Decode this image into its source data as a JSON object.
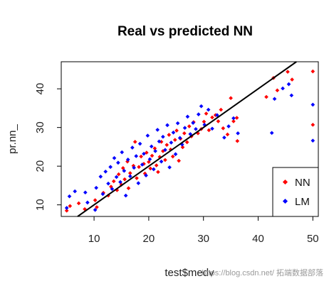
{
  "chart_data": {
    "type": "scatter",
    "title": "Real vs predicted NN",
    "xlabel": "test$medv",
    "ylabel": "pr.nn_",
    "xlim": [
      4,
      51
    ],
    "ylim": [
      7,
      47
    ],
    "x_ticks": [
      10,
      20,
      30,
      40,
      50
    ],
    "y_ticks": [
      10,
      20,
      30,
      40
    ],
    "grid": false,
    "legend": {
      "position": "bottom-right",
      "entries": [
        "NN",
        "LM"
      ]
    },
    "reference_line": {
      "slope": 1,
      "intercept": 0,
      "color": "#000000"
    },
    "colors": {
      "NN": "#ff0000",
      "LM": "#0000ff"
    },
    "series": [
      {
        "name": "NN",
        "marker": "diamond",
        "color": "#ff0000",
        "points": [
          [
            5,
            8.5
          ],
          [
            5.6,
            9.7
          ],
          [
            7.2,
            10.4
          ],
          [
            8.3,
            8.9
          ],
          [
            10.2,
            11.2
          ],
          [
            10.5,
            9.4
          ],
          [
            11.7,
            13.1
          ],
          [
            12.6,
            12.4
          ],
          [
            13.1,
            14.7
          ],
          [
            13.6,
            16.1
          ],
          [
            14.2,
            13.8
          ],
          [
            14.5,
            17.9
          ],
          [
            15,
            15.2
          ],
          [
            15.3,
            19.5
          ],
          [
            15.6,
            16.6
          ],
          [
            16.1,
            21.2
          ],
          [
            16.3,
            14.3
          ],
          [
            16.6,
            18.2
          ],
          [
            17.2,
            20.1
          ],
          [
            17.5,
            26.3
          ],
          [
            17.8,
            16.9
          ],
          [
            18.2,
            19.8
          ],
          [
            18.6,
            22.5
          ],
          [
            19.1,
            20.6
          ],
          [
            19.3,
            18.1
          ],
          [
            19.6,
            23.5
          ],
          [
            20,
            21.1
          ],
          [
            20.3,
            19.4
          ],
          [
            20.6,
            22.7
          ],
          [
            21.1,
            24.6
          ],
          [
            21.4,
            20.2
          ],
          [
            21.7,
            18.5
          ],
          [
            22,
            22.4
          ],
          [
            22.3,
            26.3
          ],
          [
            22.6,
            23.9
          ],
          [
            23,
            21.6
          ],
          [
            23.3,
            25.5
          ],
          [
            23.7,
            28.1
          ],
          [
            24,
            24.3
          ],
          [
            24.4,
            22.5
          ],
          [
            24.8,
            26.8
          ],
          [
            25.1,
            29.2
          ],
          [
            25.5,
            21.4
          ],
          [
            25.8,
            27.1
          ],
          [
            26.2,
            24.9
          ],
          [
            26.5,
            28.5
          ],
          [
            27,
            26.2
          ],
          [
            27.4,
            30.3
          ],
          [
            27.8,
            27.7
          ],
          [
            28.2,
            31.4
          ],
          [
            29,
            28.5
          ],
          [
            29.6,
            29.6
          ],
          [
            30.1,
            31.5
          ],
          [
            30.5,
            33.6
          ],
          [
            31,
            29.3
          ],
          [
            31.6,
            32.6
          ],
          [
            32.2,
            33.2
          ],
          [
            32.7,
            31.6
          ],
          [
            33.2,
            34.6
          ],
          [
            33.6,
            29.8
          ],
          [
            34.4,
            28.2
          ],
          [
            35,
            37.6
          ],
          [
            35.5,
            31.6
          ],
          [
            36.1,
            32.5
          ],
          [
            36.2,
            26.5
          ],
          [
            41.5,
            37.9
          ],
          [
            42.8,
            42.8
          ],
          [
            43.5,
            39.6
          ],
          [
            45.4,
            44.4
          ],
          [
            46.2,
            42.4
          ],
          [
            50,
            44.5
          ],
          [
            50,
            30.7
          ]
        ]
      },
      {
        "name": "LM",
        "marker": "diamond",
        "color": "#0000ff",
        "points": [
          [
            5,
            9.2
          ],
          [
            5.5,
            12.2
          ],
          [
            6.5,
            13.5
          ],
          [
            8.4,
            13.2
          ],
          [
            8.8,
            10.6
          ],
          [
            10.2,
            8.7
          ],
          [
            10.4,
            14.4
          ],
          [
            11.2,
            17.3
          ],
          [
            11.6,
            12.8
          ],
          [
            12.1,
            18.6
          ],
          [
            12.6,
            15.5
          ],
          [
            13,
            19.8
          ],
          [
            13.3,
            14.1
          ],
          [
            13.7,
            22.1
          ],
          [
            14.1,
            17.2
          ],
          [
            14.4,
            20.9
          ],
          [
            14.8,
            15.9
          ],
          [
            15.1,
            23.6
          ],
          [
            15.5,
            18.8
          ],
          [
            15.8,
            12.4
          ],
          [
            16.2,
            21.7
          ],
          [
            16.6,
            17.4
          ],
          [
            17,
            24.8
          ],
          [
            17.3,
            19.6
          ],
          [
            17.7,
            22.6
          ],
          [
            18.1,
            15.6
          ],
          [
            18.4,
            25.8
          ],
          [
            18.8,
            20.4
          ],
          [
            19.1,
            23.2
          ],
          [
            19.5,
            17.6
          ],
          [
            19.8,
            27.9
          ],
          [
            20.2,
            21.8
          ],
          [
            20.5,
            25.1
          ],
          [
            20.9,
            19.2
          ],
          [
            21.2,
            23.9
          ],
          [
            21.6,
            29.4
          ],
          [
            21.9,
            26.4
          ],
          [
            22.3,
            21.2
          ],
          [
            22.6,
            27.6
          ],
          [
            23,
            24.2
          ],
          [
            23.4,
            30.6
          ],
          [
            23.8,
            19.7
          ],
          [
            24.1,
            26.1
          ],
          [
            24.5,
            28.7
          ],
          [
            24.9,
            23.1
          ],
          [
            25.3,
            31.1
          ],
          [
            25.7,
            27.3
          ],
          [
            26.1,
            25.6
          ],
          [
            26.6,
            29.9
          ],
          [
            27.1,
            32.8
          ],
          [
            27.6,
            28.3
          ],
          [
            28.1,
            31.2
          ],
          [
            28.6,
            29.6
          ],
          [
            29.1,
            33.4
          ],
          [
            29.6,
            35.5
          ],
          [
            30.2,
            30.7
          ],
          [
            30.9,
            34.6
          ],
          [
            31.6,
            29.7
          ],
          [
            32.5,
            33.2
          ],
          [
            33.8,
            27.4
          ],
          [
            34.6,
            30.3
          ],
          [
            35.5,
            32.4
          ],
          [
            36.3,
            28.5
          ],
          [
            42.5,
            28.6
          ],
          [
            43,
            37.4
          ],
          [
            44.5,
            40.1
          ],
          [
            45.6,
            41.2
          ],
          [
            46.1,
            38.3
          ],
          [
            50,
            35.9
          ],
          [
            50,
            26.6
          ]
        ]
      }
    ]
  },
  "watermark": "https://blog.csdn.net/  拓端数据部落"
}
